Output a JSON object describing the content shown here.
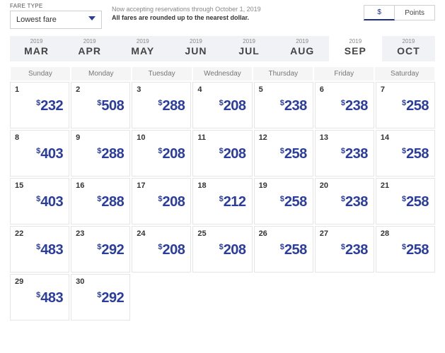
{
  "fare": {
    "label": "FARE TYPE",
    "selected": "Lowest fare"
  },
  "notice": {
    "line1": "Now accepting reservations through October 1, 2019",
    "line2": "All fares are rounded up to the nearest dollar."
  },
  "toggle": {
    "currency_label": "$",
    "points_label": "Points"
  },
  "months": [
    {
      "year": "2019",
      "abbr": "MAR",
      "active": false
    },
    {
      "year": "2019",
      "abbr": "APR",
      "active": false
    },
    {
      "year": "2019",
      "abbr": "MAY",
      "active": false
    },
    {
      "year": "2019",
      "abbr": "JUN",
      "active": false
    },
    {
      "year": "2019",
      "abbr": "JUL",
      "active": false
    },
    {
      "year": "2019",
      "abbr": "AUG",
      "active": false
    },
    {
      "year": "2019",
      "abbr": "SEP",
      "active": true
    },
    {
      "year": "2019",
      "abbr": "OCT",
      "active": false
    }
  ],
  "dow": [
    "Sunday",
    "Monday",
    "Tuesday",
    "Wednesday",
    "Thursday",
    "Friday",
    "Saturday"
  ],
  "currency_symbol": "$",
  "cells": [
    {
      "day": "1",
      "price": "232"
    },
    {
      "day": "2",
      "price": "508"
    },
    {
      "day": "3",
      "price": "288"
    },
    {
      "day": "4",
      "price": "208"
    },
    {
      "day": "5",
      "price": "238"
    },
    {
      "day": "6",
      "price": "238"
    },
    {
      "day": "7",
      "price": "258"
    },
    {
      "day": "8",
      "price": "403"
    },
    {
      "day": "9",
      "price": "288"
    },
    {
      "day": "10",
      "price": "208"
    },
    {
      "day": "11",
      "price": "208"
    },
    {
      "day": "12",
      "price": "258"
    },
    {
      "day": "13",
      "price": "238"
    },
    {
      "day": "14",
      "price": "258"
    },
    {
      "day": "15",
      "price": "403"
    },
    {
      "day": "16",
      "price": "288"
    },
    {
      "day": "17",
      "price": "208"
    },
    {
      "day": "18",
      "price": "212"
    },
    {
      "day": "19",
      "price": "258"
    },
    {
      "day": "20",
      "price": "238"
    },
    {
      "day": "21",
      "price": "258"
    },
    {
      "day": "22",
      "price": "483"
    },
    {
      "day": "23",
      "price": "292"
    },
    {
      "day": "24",
      "price": "208"
    },
    {
      "day": "25",
      "price": "208"
    },
    {
      "day": "26",
      "price": "258"
    },
    {
      "day": "27",
      "price": "238"
    },
    {
      "day": "28",
      "price": "258"
    },
    {
      "day": "29",
      "price": "483"
    },
    {
      "day": "30",
      "price": "292"
    },
    {},
    {},
    {},
    {},
    {}
  ]
}
